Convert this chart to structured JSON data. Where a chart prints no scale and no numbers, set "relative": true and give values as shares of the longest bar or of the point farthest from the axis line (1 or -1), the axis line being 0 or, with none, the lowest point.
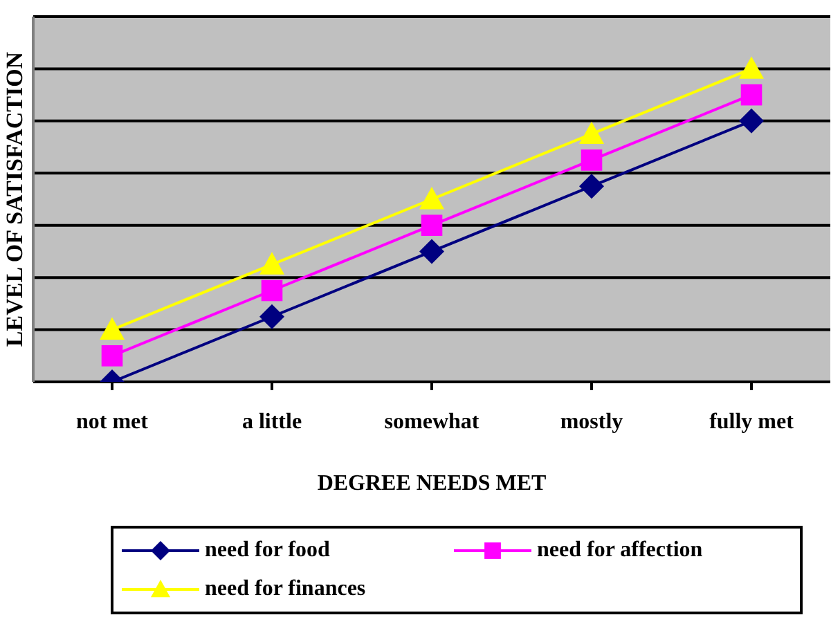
{
  "chart_data": {
    "type": "line",
    "relative": true,
    "xlabel": "DEGREE NEEDS MET",
    "ylabel": "LEVEL OF SATISFACTION",
    "categories": [
      "not met",
      "a little",
      "somewhat",
      "mostly",
      "fully met"
    ],
    "grid": "y",
    "legend": "bottom",
    "series": [
      {
        "name": "need for food",
        "color": "#000080",
        "marker": "diamond",
        "values": [
          0,
          0.2083,
          0.4167,
          0.625,
          0.8333
        ]
      },
      {
        "name": "need for affection",
        "color": "#ff00ff",
        "marker": "square",
        "values": [
          0.0833,
          0.2917,
          0.5,
          0.7083,
          0.9167
        ]
      },
      {
        "name": "need for finances",
        "color": "#ffff00",
        "marker": "triangle",
        "values": [
          0.1667,
          0.375,
          0.5833,
          0.7917,
          1
        ]
      }
    ]
  }
}
